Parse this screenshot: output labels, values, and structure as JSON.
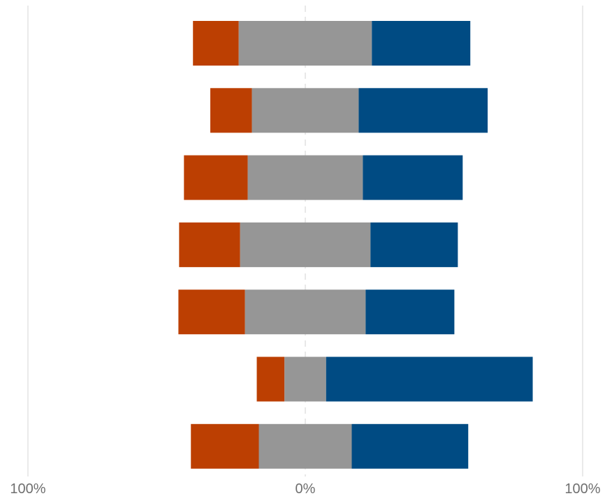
{
  "chart_data": {
    "type": "bar",
    "orientation": "horizontal",
    "stacked": true,
    "diverging": true,
    "title": "",
    "xlabel": "",
    "ylabel": "",
    "xlim": [
      -100,
      100
    ],
    "x_ticks": [
      {
        "value": -100,
        "label": "100%"
      },
      {
        "value": 0,
        "label": "0%"
      },
      {
        "value": 100,
        "label": "100%"
      }
    ],
    "grid": {
      "vertical_lines_at": [
        -100,
        100
      ],
      "center_line_at": 0,
      "center_line_style": "dashed"
    },
    "legend": "none",
    "categories": [
      "",
      "",
      "",
      "",
      "",
      "",
      ""
    ],
    "series": [
      {
        "color": "#bc3f02",
        "side": "left",
        "values": [
          16.5,
          15,
          23,
          22,
          24,
          10,
          24.5
        ]
      },
      {
        "color": "#969696",
        "side": "center",
        "values": [
          48,
          38.5,
          41.5,
          47,
          43.5,
          15,
          33.5
        ]
      },
      {
        "color": "#004b83",
        "side": "right",
        "values": [
          35.5,
          46.5,
          36,
          31.5,
          32,
          74.5,
          42
        ]
      }
    ]
  }
}
